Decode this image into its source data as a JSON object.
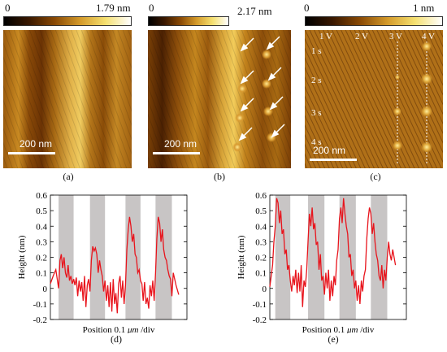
{
  "panels": {
    "a": {
      "cbar_min": "0",
      "cbar_max": "1.79 nm",
      "scale": "200 nm",
      "caption": "(a)"
    },
    "b": {
      "cbar_min": "0",
      "cbar_max": "2.17 nm",
      "scale": "200 nm",
      "caption": "(b)"
    },
    "c": {
      "cbar_min": "0",
      "cbar_max": "1 nm",
      "scale": "200 nm",
      "caption": "(c)",
      "voltages": [
        "1 V",
        "2 V",
        "3 V",
        "4 V"
      ],
      "times": [
        "1 s",
        "2 s",
        "3 s",
        "4 s"
      ]
    },
    "d": {
      "caption": "(d)"
    },
    "e": {
      "caption": "(e)"
    }
  },
  "colors": {
    "afm_dark": "#2a1200",
    "afm_mid": "#a8650e",
    "afm_light": "#f2d070",
    "trace": "#e8141c",
    "band": "#c8c5c5"
  },
  "chart_data": [
    {
      "type": "line",
      "panel": "d",
      "ylabel": "Height (nm)",
      "xlabel_parts": [
        "Position",
        "0.1 ",
        "μm",
        " /div"
      ],
      "ylim": [
        -0.2,
        0.6
      ],
      "yticks": [
        "0.6",
        "0.5",
        "0.4",
        "0.3",
        "0.2",
        "0.1",
        "0",
        "-0.1",
        "-0.2"
      ],
      "x_extent": [
        0,
        1
      ],
      "shaded_bands": [
        [
          0.06,
          0.17
        ],
        [
          0.29,
          0.4
        ],
        [
          0.55,
          0.66
        ],
        [
          0.77,
          0.89
        ]
      ],
      "series": [
        {
          "x": [
            0.0,
            0.02,
            0.04,
            0.06,
            0.07,
            0.08,
            0.09,
            0.1,
            0.11,
            0.12,
            0.13,
            0.14,
            0.15,
            0.16,
            0.17,
            0.18,
            0.19,
            0.2,
            0.21,
            0.22,
            0.23,
            0.24,
            0.25,
            0.26,
            0.27,
            0.28,
            0.29,
            0.3,
            0.31,
            0.32,
            0.33,
            0.34,
            0.35,
            0.36,
            0.37,
            0.38,
            0.39,
            0.4,
            0.41,
            0.42,
            0.43,
            0.44,
            0.45,
            0.46,
            0.47,
            0.48,
            0.49,
            0.5,
            0.51,
            0.52,
            0.53,
            0.54,
            0.55,
            0.56,
            0.57,
            0.58,
            0.59,
            0.6,
            0.61,
            0.62,
            0.63,
            0.64,
            0.65,
            0.66,
            0.67,
            0.68,
            0.69,
            0.7,
            0.71,
            0.72,
            0.73,
            0.74,
            0.75,
            0.76,
            0.77,
            0.78,
            0.79,
            0.8,
            0.81,
            0.82,
            0.83,
            0.84,
            0.85,
            0.86,
            0.87,
            0.88,
            0.89,
            0.9,
            0.92,
            0.94
          ],
          "y": [
            0.03,
            0.08,
            0.12,
            0.0,
            0.18,
            0.22,
            0.13,
            0.2,
            0.1,
            0.07,
            0.15,
            0.05,
            0.08,
            0.03,
            0.06,
            0.02,
            0.07,
            -0.05,
            0.05,
            -0.02,
            0.04,
            -0.08,
            0.08,
            -0.12,
            0.02,
            0.06,
            -0.02,
            0.18,
            0.27,
            0.24,
            0.26,
            0.22,
            0.1,
            0.18,
            0.12,
            0.08,
            -0.02,
            0.05,
            -0.08,
            0.02,
            -0.12,
            0.04,
            -0.15,
            0.06,
            -0.1,
            -0.03,
            -0.16,
            0.03,
            0.08,
            -0.06,
            0.05,
            -0.1,
            0.02,
            0.25,
            0.38,
            0.46,
            0.4,
            0.3,
            0.35,
            0.22,
            0.2,
            0.1,
            0.12,
            0.05,
            0.03,
            -0.08,
            0.04,
            -0.1,
            -0.06,
            -0.13,
            0.02,
            -0.05,
            0.05,
            -0.08,
            0.1,
            0.32,
            0.46,
            0.42,
            0.3,
            0.38,
            0.25,
            0.2,
            0.18,
            0.12,
            0.08,
            0.06,
            -0.05,
            0.1,
            0.02,
            -0.04
          ]
        }
      ]
    },
    {
      "type": "line",
      "panel": "e",
      "ylabel": "Height (nm)",
      "xlabel_parts": [
        "Position",
        "0.1 ",
        "μm",
        " /div"
      ],
      "ylim": [
        -0.2,
        0.6
      ],
      "yticks": [
        "0.6",
        "0.5",
        "0.4",
        "0.3",
        "0.2",
        "0.1",
        "0",
        "-0.1",
        "-0.2"
      ],
      "x_extent": [
        0,
        1
      ],
      "shaded_bands": [
        [
          0.04,
          0.15
        ],
        [
          0.28,
          0.4
        ],
        [
          0.51,
          0.63
        ],
        [
          0.74,
          0.86
        ]
      ],
      "series": [
        {
          "x": [
            0.0,
            0.02,
            0.03,
            0.04,
            0.05,
            0.06,
            0.07,
            0.08,
            0.09,
            0.1,
            0.11,
            0.12,
            0.13,
            0.14,
            0.15,
            0.16,
            0.17,
            0.18,
            0.19,
            0.2,
            0.21,
            0.22,
            0.23,
            0.24,
            0.25,
            0.26,
            0.27,
            0.28,
            0.29,
            0.3,
            0.31,
            0.32,
            0.33,
            0.34,
            0.35,
            0.36,
            0.37,
            0.38,
            0.39,
            0.4,
            0.41,
            0.42,
            0.43,
            0.44,
            0.45,
            0.46,
            0.47,
            0.48,
            0.49,
            0.5,
            0.51,
            0.52,
            0.53,
            0.54,
            0.55,
            0.56,
            0.57,
            0.58,
            0.59,
            0.6,
            0.61,
            0.62,
            0.63,
            0.64,
            0.65,
            0.66,
            0.67,
            0.68,
            0.69,
            0.7,
            0.71,
            0.72,
            0.73,
            0.74,
            0.75,
            0.76,
            0.77,
            0.78,
            0.79,
            0.8,
            0.81,
            0.82,
            0.83,
            0.84,
            0.85,
            0.86,
            0.87,
            0.88,
            0.89,
            0.9,
            0.92
          ],
          "y": [
            0.01,
            0.15,
            0.3,
            0.4,
            0.58,
            0.55,
            0.42,
            0.5,
            0.35,
            0.38,
            0.22,
            0.25,
            0.12,
            0.15,
            0.05,
            -0.02,
            0.08,
            0.02,
            0.12,
            -0.03,
            0.1,
            -0.02,
            0.15,
            -0.12,
            0.05,
            0.01,
            0.12,
            0.3,
            0.48,
            0.4,
            0.52,
            0.38,
            0.42,
            0.28,
            0.3,
            0.12,
            0.22,
            0.05,
            0.08,
            -0.04,
            0.1,
            0.0,
            0.12,
            -0.08,
            0.05,
            -0.05,
            0.08,
            0.02,
            0.18,
            0.25,
            0.45,
            0.52,
            0.42,
            0.58,
            0.48,
            0.4,
            0.35,
            0.2,
            0.22,
            0.08,
            0.12,
            0.0,
            0.05,
            -0.08,
            0.02,
            -0.1,
            0.05,
            -0.02,
            0.08,
            0.12,
            0.32,
            0.45,
            0.52,
            0.48,
            0.35,
            0.42,
            0.3,
            0.22,
            0.18,
            0.08,
            0.05,
            0.15,
            0.0,
            0.12,
            0.05,
            0.2,
            0.3,
            0.22,
            0.18,
            0.25,
            0.15
          ]
        }
      ]
    }
  ]
}
